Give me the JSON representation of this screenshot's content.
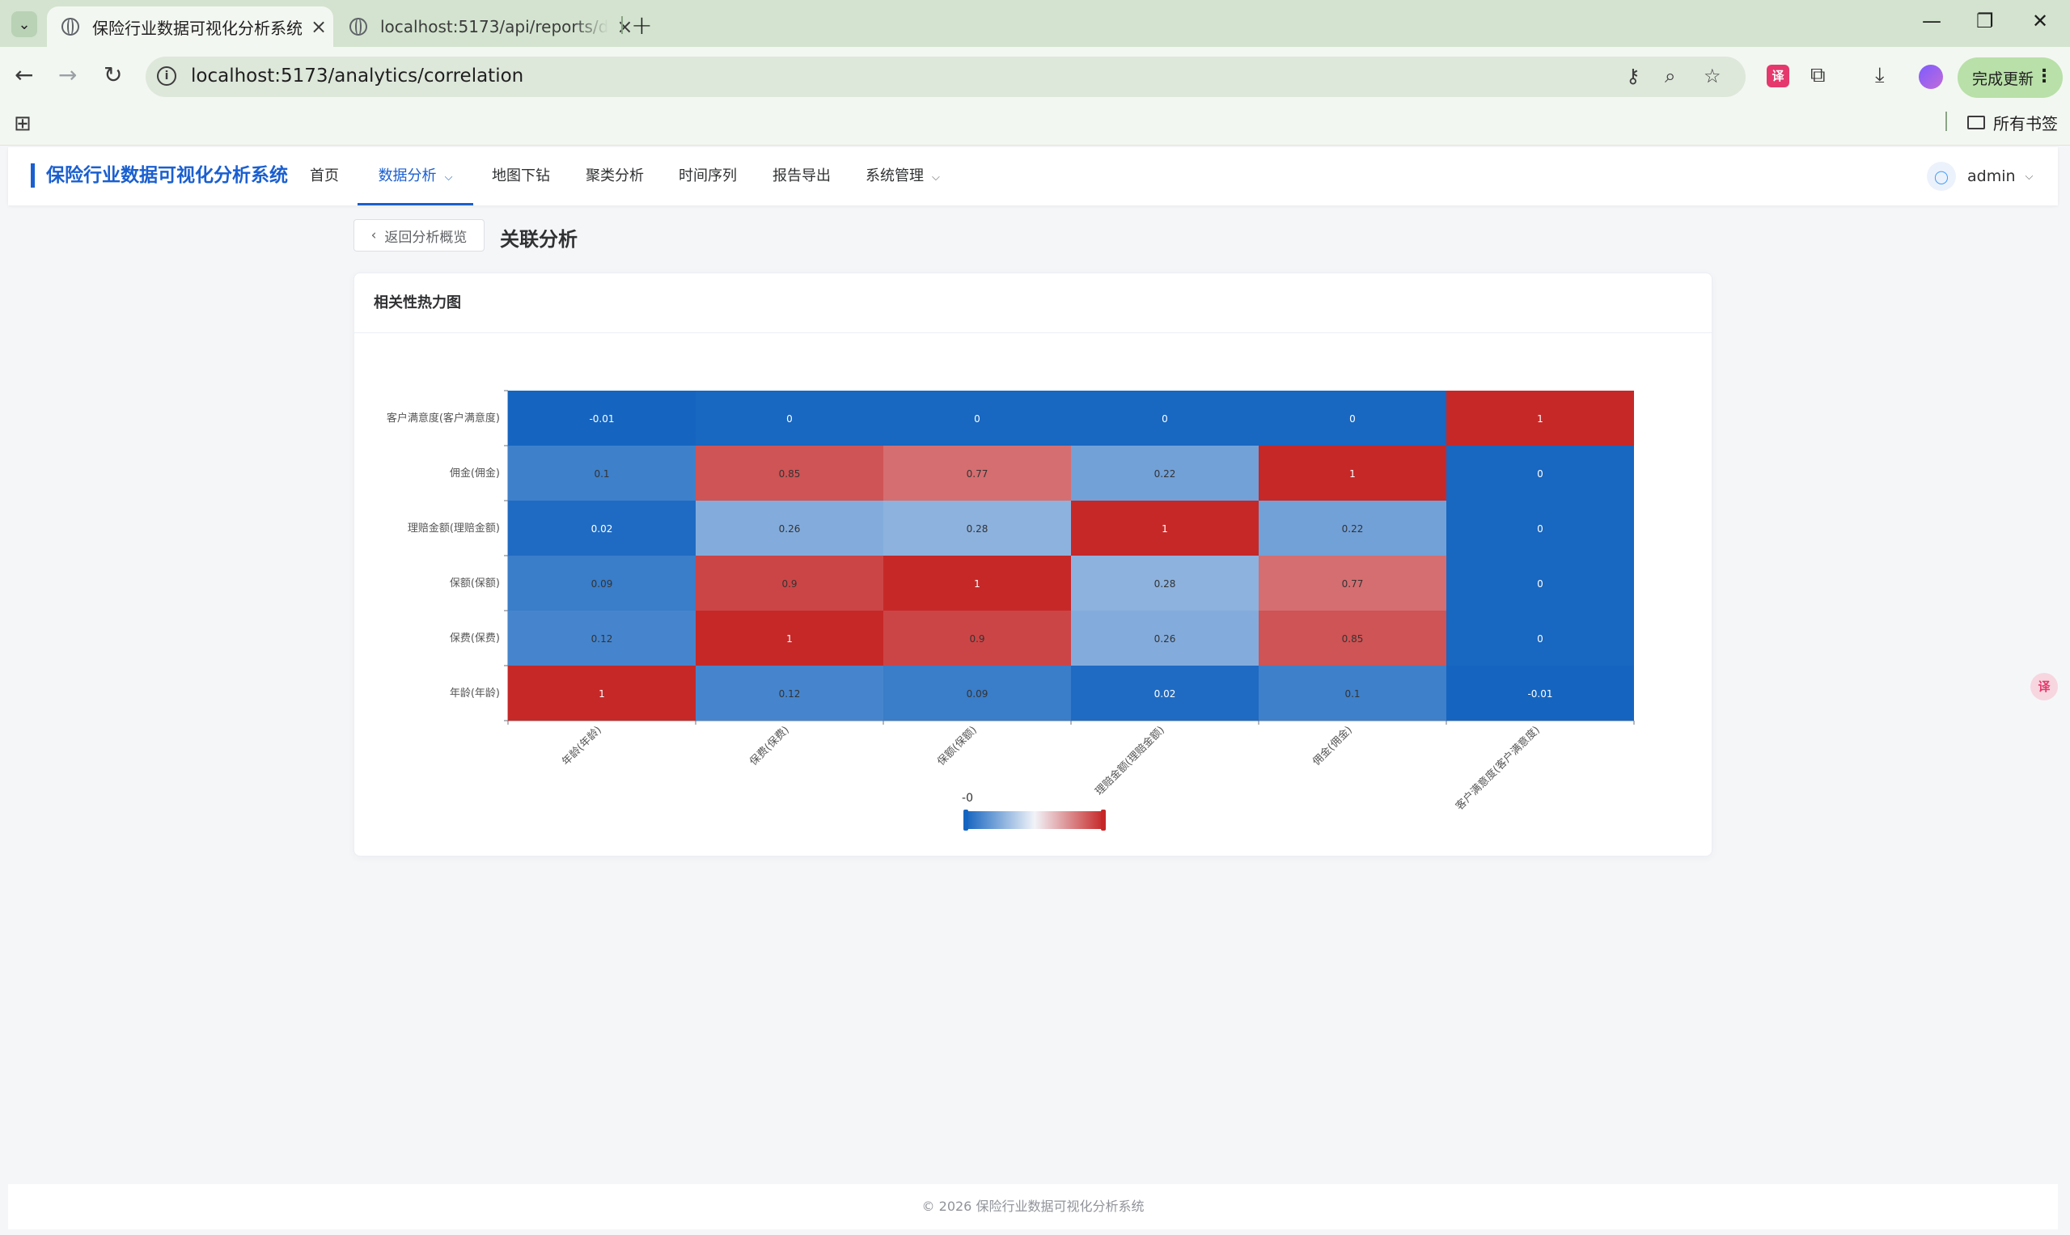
{
  "browser": {
    "tabs": [
      {
        "title": "保险行业数据可视化分析系统"
      },
      {
        "title": "localhost:5173/api/reports/d"
      }
    ],
    "url": "localhost:5173/analytics/correlation",
    "update_label": "完成更新",
    "bookmark_folder": "所有书签"
  },
  "header": {
    "brand": "保险行业数据可视化分析系统",
    "menu": [
      {
        "label": "首页"
      },
      {
        "label": "数据分析"
      },
      {
        "label": "地图下钻"
      },
      {
        "label": "聚类分析"
      },
      {
        "label": "时间序列"
      },
      {
        "label": "报告导出"
      },
      {
        "label": "系统管理"
      }
    ],
    "user": "admin"
  },
  "page": {
    "back_label": "返回分析概览",
    "title": "关联分析",
    "card_title": "相关性热力图"
  },
  "chart_data": {
    "type": "heatmap",
    "x_categories": [
      "年龄(年龄)",
      "保费(保费)",
      "保额(保额)",
      "理赔金额(理赔金额)",
      "佣金(佣金)",
      "客户满意度(客户满意度)"
    ],
    "y_categories": [
      "年龄(年龄)",
      "保费(保费)",
      "保额(保额)",
      "理赔金额(理赔金额)",
      "佣金(佣金)",
      "客户满意度(客户满意度)"
    ],
    "values": [
      [
        1,
        0.12,
        0.09,
        0.02,
        0.1,
        -0.01
      ],
      [
        0.12,
        1,
        0.9,
        0.26,
        0.85,
        0
      ],
      [
        0.09,
        0.9,
        1,
        0.28,
        0.77,
        0
      ],
      [
        0.02,
        0.26,
        0.28,
        1,
        0.22,
        0
      ],
      [
        0.1,
        0.85,
        0.77,
        0.22,
        1,
        0
      ],
      [
        -0.01,
        0,
        0,
        0,
        0,
        1
      ]
    ],
    "visual_map": {
      "min_label": "-0",
      "low_color": "#1565c0",
      "mid_color": "#f1f3f8",
      "high_color": "#c62828"
    }
  },
  "footer": "© 2026 保险行业数据可视化分析系统"
}
